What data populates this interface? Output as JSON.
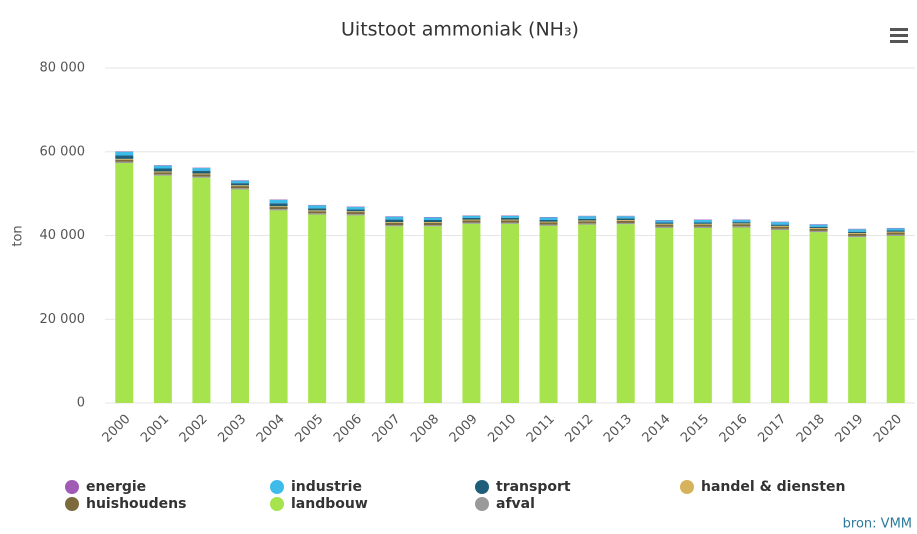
{
  "chart_data": {
    "type": "stacked_bar",
    "title": "Uitstoot ammoniak (NH₃)",
    "y_label": "ton",
    "source": "bron: VMM",
    "categories": [
      "2000",
      "2001",
      "2002",
      "2003",
      "2004",
      "2005",
      "2006",
      "2007",
      "2008",
      "2009",
      "2010",
      "2011",
      "2012",
      "2013",
      "2014",
      "2015",
      "2016",
      "2017",
      "2018",
      "2019",
      "2020"
    ],
    "ylim": [
      0,
      80000
    ],
    "yticks": [
      0,
      {
        "value": 20000,
        "label": "20 000"
      },
      {
        "value": 40000,
        "label": "40 000"
      },
      {
        "value": 60000,
        "label": "60 000"
      },
      {
        "value": 80000,
        "label": "80 000"
      }
    ],
    "grid": true,
    "series": [
      {
        "name": "energie",
        "color": "#a05bb4",
        "values": [
          100,
          100,
          100,
          100,
          100,
          100,
          100,
          100,
          100,
          100,
          100,
          100,
          100,
          100,
          100,
          100,
          100,
          100,
          100,
          100,
          100
        ]
      },
      {
        "name": "industrie",
        "color": "#3ebbe9",
        "values": [
          900,
          700,
          700,
          600,
          800,
          700,
          600,
          700,
          600,
          500,
          500,
          600,
          600,
          500,
          500,
          600,
          500,
          600,
          500,
          600,
          500
        ]
      },
      {
        "name": "transport",
        "color": "#1f5e78",
        "values": [
          800,
          700,
          600,
          500,
          700,
          500,
          400,
          600,
          500,
          400,
          400,
          400,
          400,
          400,
          300,
          300,
          300,
          300,
          300,
          300,
          300
        ]
      },
      {
        "name": "handel & diensten",
        "color": "#d6b25c",
        "values": [
          200,
          200,
          200,
          200,
          200,
          200,
          200,
          200,
          200,
          200,
          200,
          200,
          200,
          200,
          200,
          200,
          200,
          200,
          200,
          200,
          200
        ]
      },
      {
        "name": "huishoudens",
        "color": "#7b6a3b",
        "values": [
          500,
          500,
          500,
          500,
          500,
          500,
          500,
          500,
          500,
          500,
          500,
          500,
          500,
          500,
          500,
          500,
          500,
          500,
          500,
          500,
          500
        ]
      },
      {
        "name": "landbouw",
        "color": "#a6e34c",
        "values": [
          57300,
          54300,
          53800,
          51000,
          46000,
          45000,
          44800,
          42200,
          42200,
          42800,
          42800,
          42300,
          42600,
          42700,
          41800,
          41800,
          41900,
          41300,
          40800,
          39600,
          39900
        ]
      },
      {
        "name": "afval",
        "color": "#9a9a9a",
        "values": [
          300,
          300,
          300,
          300,
          300,
          300,
          300,
          300,
          300,
          300,
          300,
          300,
          300,
          300,
          300,
          300,
          300,
          300,
          300,
          300,
          300
        ]
      }
    ],
    "stack_order": [
      "landbouw",
      "afval",
      "huishoudens",
      "handel & diensten",
      "transport",
      "industrie",
      "energie"
    ]
  }
}
